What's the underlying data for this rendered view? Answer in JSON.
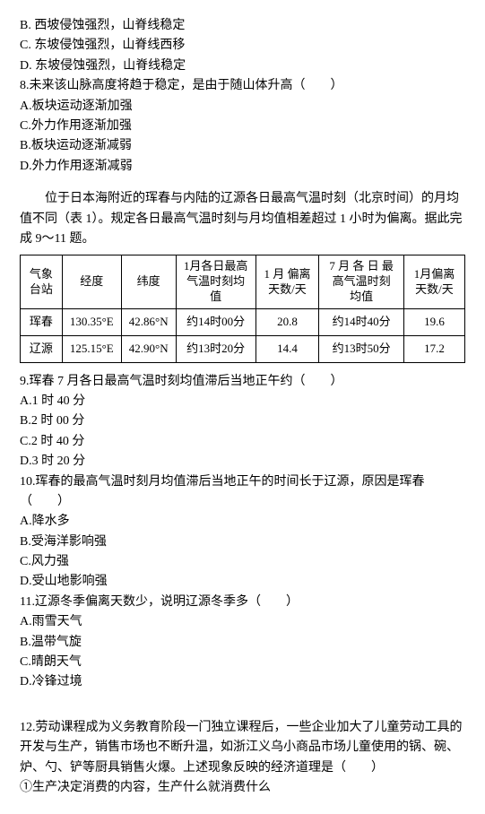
{
  "q_top": {
    "b": "B. 西坡侵蚀强烈，山脊线稳定",
    "c": "C. 东坡侵蚀强烈，山脊线西移",
    "d": "D. 东坡侵蚀强烈，山脊线稳定"
  },
  "q8": {
    "stem": "8.未来该山脉高度将趋于稳定，是由于随山体升高（　　）",
    "a": "A.板块运动逐渐加强",
    "c": "C.外力作用逐渐加强",
    "b": "B.板块运动逐渐减弱",
    "d": "D.外力作用逐渐减弱"
  },
  "intro": "位于日本海附近的珲春与内陆的辽源各日最高气温时刻（北京时间）的月均值不同（表 1）。规定各日最高气温时刻与月均值相差超过 1 小时为偏离。据此完成 9～11 题。",
  "table": {
    "headers": {
      "c1": "气象台站",
      "c2": "经度",
      "c3": "纬度",
      "c4": "1月各日最高气温时刻均值",
      "c5": "1 月 偏离天数/天",
      "c6": "7 月 各 日 最高气温时刻均值",
      "c7": "1月偏离天数/天"
    },
    "rows": [
      {
        "c1": "珲春",
        "c2": "130.35°E",
        "c3": "42.86°N",
        "c4": "约14时00分",
        "c5": "20.8",
        "c6": "约14时40分",
        "c7": "19.6"
      },
      {
        "c1": "辽源",
        "c2": "125.15°E",
        "c3": "42.90°N",
        "c4": "约13时20分",
        "c5": "14.4",
        "c6": "约13时50分",
        "c7": "17.2"
      }
    ]
  },
  "q9": {
    "stem": "9.珲春 7 月各日最高气温时刻均值滞后当地正午约（　　）",
    "a": "A.1 时 40 分",
    "b": "B.2 时 00 分",
    "c": "C.2 时 40 分",
    "d": "D.3 时 20 分"
  },
  "q10": {
    "stem": "10.珲春的最高气温时刻月均值滞后当地正午的时间长于辽源，原因是珲春（　　）",
    "a": "A.降水多",
    "b": "B.受海洋影响强",
    "c": "C.风力强",
    "d": "D.受山地影响强"
  },
  "q11": {
    "stem": "11.辽源冬季偏离天数少，说明辽源冬季多（　　）",
    "a": "A.雨雪天气",
    "b": "B.温带气旋",
    "c": "C.晴朗天气",
    "d": "D.冷锋过境"
  },
  "q12": {
    "stem": "12.劳动课程成为义务教育阶段一门独立课程后，一些企业加大了儿童劳动工具的开发与生产，销售市场也不断升温，如浙江义乌小商品市场儿童使用的锅、碗、炉、勺、铲等厨具销售火爆。上述现象反映的经济道理是（　　）",
    "opt1": "①生产决定消费的内容，生产什么就消费什么"
  }
}
